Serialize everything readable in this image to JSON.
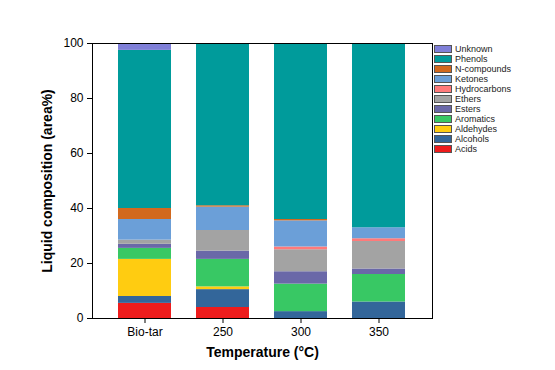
{
  "chart_data": {
    "type": "bar",
    "stacked": true,
    "x_label": "Temperature (°C)",
    "y_label": "Liquid composition (area%)",
    "categories": [
      "Bio-tar",
      "250",
      "300",
      "350"
    ],
    "ylim": [
      0,
      100
    ],
    "yticks": [
      0,
      20,
      40,
      60,
      80,
      100
    ],
    "legend": "right",
    "series": [
      {
        "name": "Acids",
        "color": "#ee1c1c",
        "values": [
          5.5,
          4,
          0,
          0
        ]
      },
      {
        "name": "Alcohols",
        "color": "#33669a",
        "values": [
          2.5,
          6.5,
          2.5,
          6
        ]
      },
      {
        "name": "Aldehydes",
        "color": "#ffcc11",
        "values": [
          13.5,
          1,
          0,
          0
        ]
      },
      {
        "name": "Aromatics",
        "color": "#38c864",
        "values": [
          4,
          10,
          10,
          10
        ]
      },
      {
        "name": "Esters",
        "color": "#6a68a8",
        "values": [
          1.5,
          3,
          4.5,
          2
        ]
      },
      {
        "name": "Ethers",
        "color": "#a3a3a3",
        "values": [
          1.5,
          7.5,
          8,
          10
        ]
      },
      {
        "name": "Hydrocarbons",
        "color": "#ff7a7a",
        "values": [
          0,
          0,
          1,
          1
        ]
      },
      {
        "name": "Ketones",
        "color": "#6b9fd8",
        "values": [
          7.5,
          8.5,
          9.5,
          4
        ]
      },
      {
        "name": "N-compounds",
        "color": "#d2691e",
        "values": [
          4,
          0.5,
          0.5,
          0
        ]
      },
      {
        "name": "Phenols",
        "color": "#009b9b",
        "values": [
          57.5,
          59,
          64,
          67
        ]
      },
      {
        "name": "Unknown",
        "color": "#7f7fd8",
        "values": [
          2.5,
          0,
          0,
          0
        ]
      }
    ]
  }
}
